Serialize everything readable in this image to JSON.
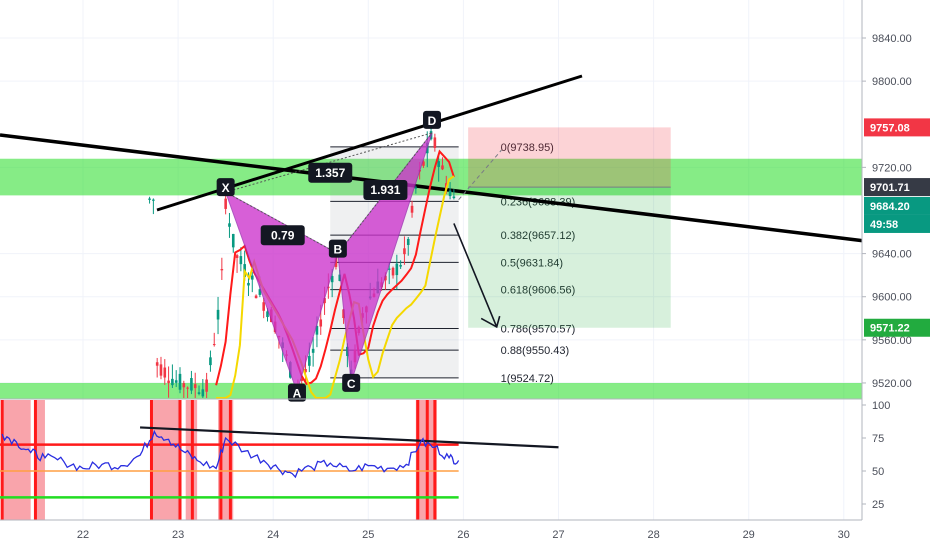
{
  "chart_data": [
    {
      "type": "candlestick",
      "y_ticks": [
        "9840.00",
        "9800.00",
        "9720.00",
        "9640.00",
        "9600.00",
        "9560.00",
        "9520.00"
      ],
      "y_tick_values": [
        9840,
        9800,
        9720,
        9640,
        9600,
        9560,
        9520
      ],
      "ylim": [
        9510,
        9865
      ],
      "x_ticks": [
        "22",
        "23",
        "24",
        "25",
        "26",
        "27",
        "28",
        "29",
        "30"
      ],
      "x_tick_values": [
        22,
        23,
        24,
        25,
        26,
        27,
        28,
        29,
        30
      ],
      "xlim": [
        21.15,
        30.25
      ],
      "price_badges": [
        {
          "label": "9757.08",
          "value": 9757.08,
          "color": "#f23645"
        },
        {
          "label": "9701.71",
          "value": 9701.71,
          "color": "#363a45"
        },
        {
          "label": "9684.20",
          "value": 9684.2,
          "color": "#089981"
        },
        {
          "label": "49:58",
          "value": 9665,
          "color": "#089981"
        },
        {
          "label": "9571.22",
          "value": 9571.22,
          "color": "#22ab3f"
        }
      ],
      "fibonacci": [
        {
          "label": "0(9738.95)",
          "value": 9738.95
        },
        {
          "label": "0.236(9688.39)",
          "value": 9688.39
        },
        {
          "label": "0.382(9657.12)",
          "value": 9657.12
        },
        {
          "label": "0.5(9631.84)",
          "value": 9631.84
        },
        {
          "label": "0.618(9606.56)",
          "value": 9606.56
        },
        {
          "label": "0.786(9570.57)",
          "value": 9570.57
        },
        {
          "label": "0.88(9550.43)",
          "value": 9550.43
        },
        {
          "label": "1(9524.72)",
          "value": 9524.72
        }
      ],
      "pattern_points": [
        {
          "name": "X",
          "x": 23.5,
          "y": 9697
        },
        {
          "name": "A",
          "x": 24.25,
          "y": 9512
        },
        {
          "name": "B",
          "x": 24.68,
          "y": 9640
        },
        {
          "name": "C",
          "x": 24.82,
          "y": 9521
        },
        {
          "name": "D",
          "x": 25.67,
          "y": 9752
        }
      ],
      "pattern_ratios": [
        {
          "label": "1.357",
          "x": 24.6,
          "y": 9715
        },
        {
          "label": "0.79",
          "x": 24.1,
          "y": 9657
        },
        {
          "label": "1.931",
          "x": 25.18,
          "y": 9699
        }
      ],
      "zones": [
        {
          "from": 9694,
          "to": 9728,
          "color": "#22dd22"
        },
        {
          "from": 9505,
          "to": 9520,
          "color": "#22dd22"
        }
      ],
      "position": {
        "entry": 9701.71,
        "target": 9571.22,
        "stop": 9757.08,
        "x0": 26.05,
        "x1": 28.18
      }
    },
    {
      "type": "line",
      "indicator": "oscillator",
      "y_ticks": [
        "100",
        "75",
        "50",
        "25"
      ],
      "y_tick_values": [
        100,
        75,
        50,
        25
      ],
      "ylim": [
        15,
        100
      ],
      "levels": [
        {
          "value": 70,
          "color": "#ff1a1a"
        },
        {
          "value": 50,
          "color": "#ff9f43"
        },
        {
          "value": 30,
          "color": "#22dd22"
        }
      ],
      "series": [
        {
          "color": "#2a2ee0",
          "x": [
            21.15,
            21.3,
            21.45,
            21.6,
            21.8,
            22.0,
            22.2,
            22.4,
            22.6,
            22.75,
            22.9,
            23.05,
            23.2,
            23.4,
            23.5,
            23.7,
            23.9,
            24.05,
            24.2,
            24.4,
            24.6,
            24.8,
            25.0,
            25.2,
            25.4,
            25.55,
            25.7,
            25.85,
            25.95
          ],
          "values": [
            78,
            72,
            64,
            60,
            57,
            52,
            55,
            54,
            62,
            80,
            74,
            65,
            58,
            52,
            75,
            65,
            58,
            52,
            48,
            53,
            56,
            50,
            54,
            52,
            55,
            72,
            68,
            60,
            58
          ]
        }
      ]
    }
  ]
}
